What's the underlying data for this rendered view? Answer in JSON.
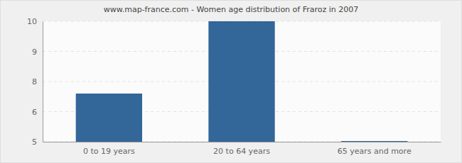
{
  "chart_data": {
    "type": "bar",
    "title": "www.map-france.com - Women age distribution of Fraroz in 2007",
    "categories": [
      "0 to 19 years",
      "20 to 64 years",
      "65 years and more"
    ],
    "values": [
      7,
      10,
      5
    ],
    "color": "#336699",
    "ylim": [
      5,
      10
    ],
    "yticks": [
      5,
      {
        "value": 6.25,
        "label": "6"
      },
      {
        "value": 7.5,
        "label": "8"
      },
      {
        "value": 8.75,
        "label": "9"
      },
      10
    ],
    "grid": true
  }
}
